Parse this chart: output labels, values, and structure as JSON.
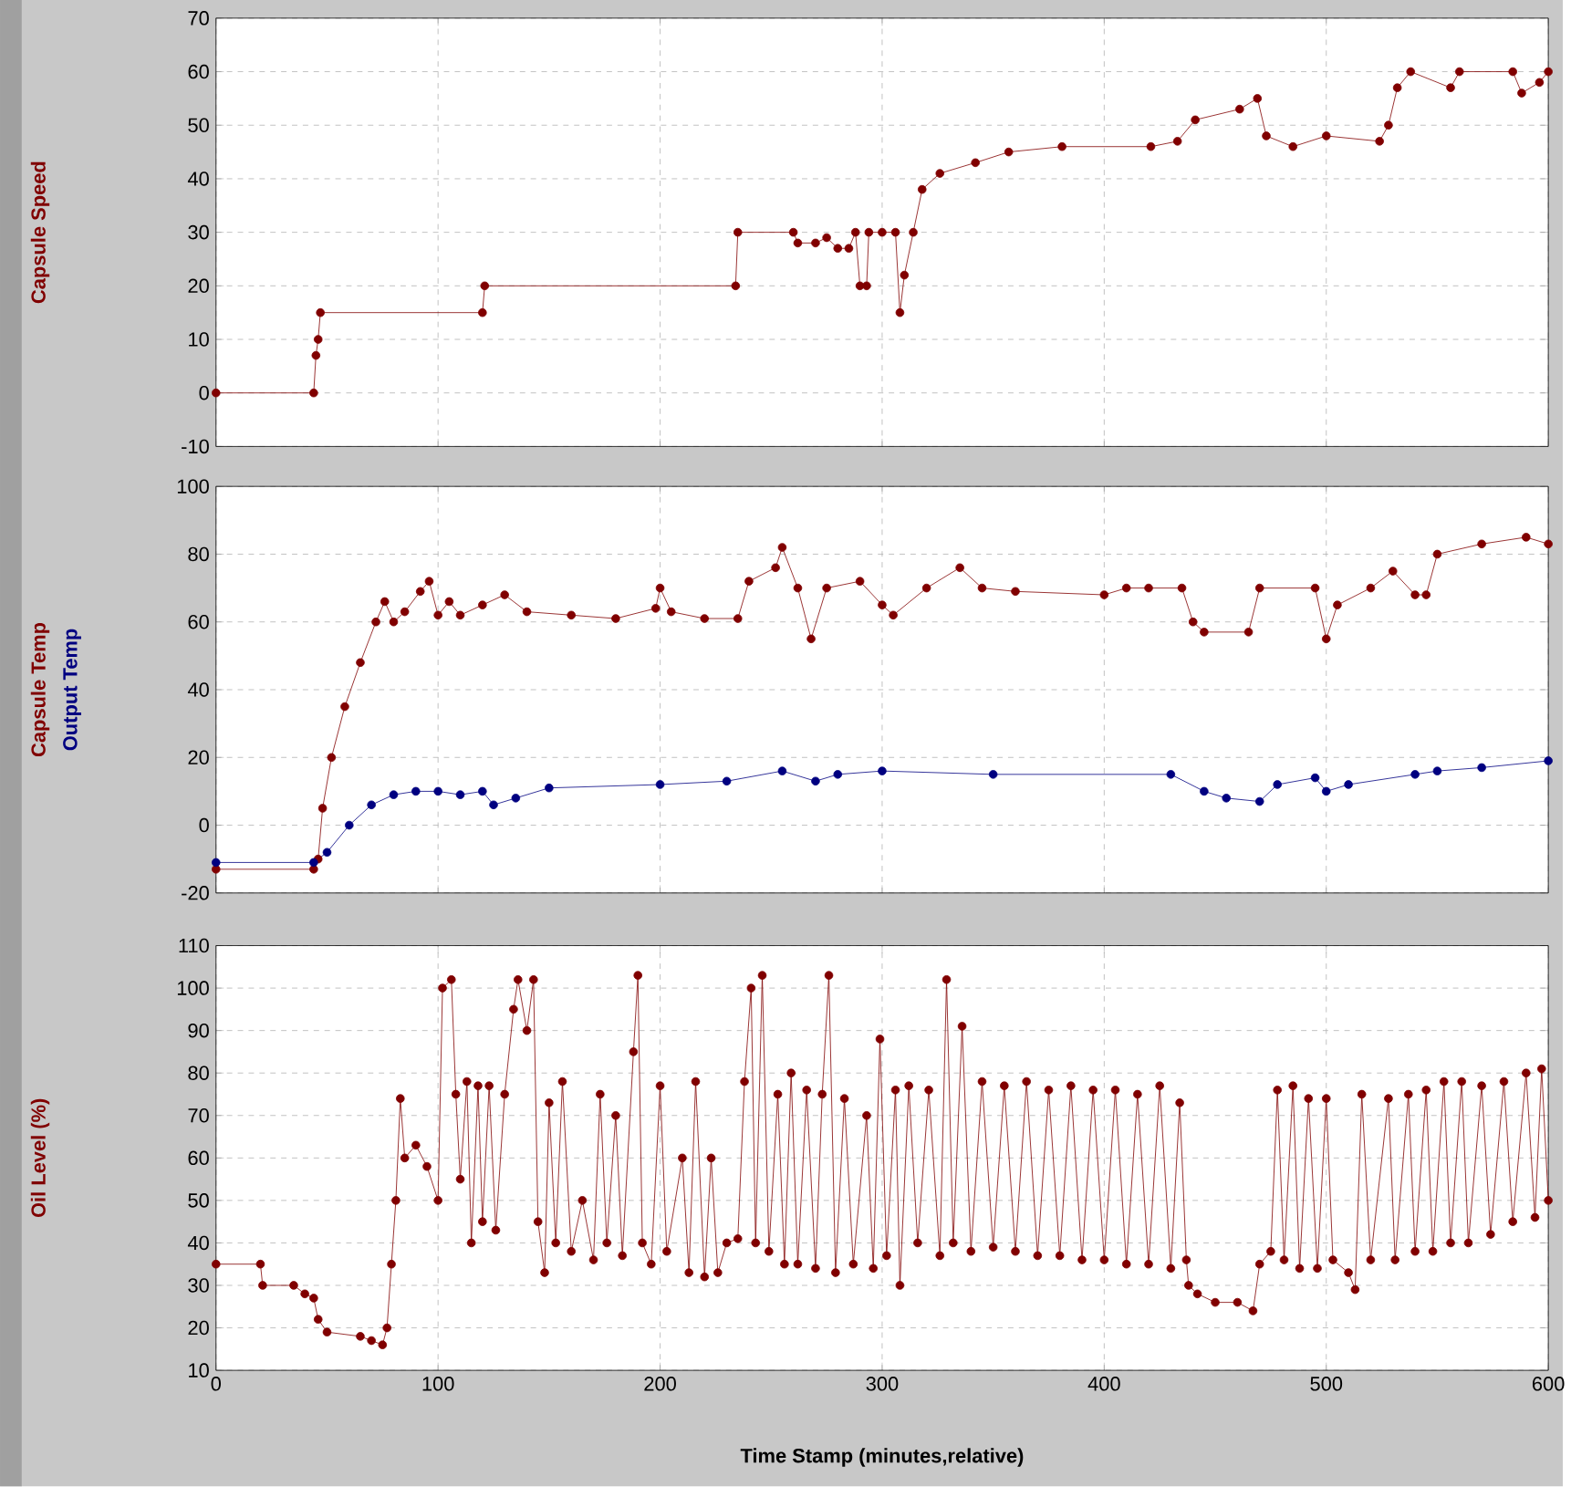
{
  "chart_data": [
    {
      "type": "line",
      "ylabel": "Capsule Speed",
      "xlim": [
        0,
        600
      ],
      "xticks": [
        0,
        100,
        200,
        300,
        400,
        500,
        600
      ],
      "ylim": [
        -10,
        70
      ],
      "yticks": [
        -10,
        0,
        10,
        20,
        30,
        40,
        50,
        60,
        70
      ],
      "grid": true,
      "marker": "circle",
      "tick_labels": "y",
      "series": [
        {
          "color": "#800000",
          "x": [
            0,
            44,
            45,
            46,
            47,
            120,
            121,
            234,
            235,
            260,
            262,
            270,
            275,
            280,
            285,
            288,
            290,
            293,
            294,
            300,
            306,
            308,
            310,
            314,
            318,
            326,
            342,
            357,
            381,
            421,
            433,
            441,
            461,
            469,
            473,
            485,
            500,
            524,
            528,
            532,
            538,
            556,
            560,
            584,
            588,
            596,
            600
          ],
          "values": [
            0,
            0,
            7,
            10,
            15,
            15,
            20,
            20,
            30,
            30,
            28,
            28,
            29,
            27,
            27,
            30,
            20,
            20,
            30,
            30,
            30,
            15,
            22,
            30,
            38,
            41,
            43,
            45,
            46,
            46,
            47,
            51,
            53,
            55,
            48,
            46,
            48,
            47,
            50,
            57,
            60,
            57,
            60,
            60,
            56,
            58,
            60
          ]
        }
      ]
    },
    {
      "type": "line",
      "xlim": [
        0,
        600
      ],
      "xticks": [
        0,
        100,
        200,
        300,
        400,
        500,
        600
      ],
      "ylim": [
        -20,
        100
      ],
      "yticks": [
        -20,
        0,
        20,
        40,
        60,
        80,
        100
      ],
      "grid": true,
      "marker": "circle",
      "tick_labels": "y",
      "series": [
        {
          "name": "Capsule Temp",
          "color": "#800000",
          "x": [
            0,
            44,
            46,
            48,
            52,
            58,
            65,
            72,
            76,
            80,
            85,
            92,
            96,
            100,
            105,
            110,
            120,
            130,
            140,
            160,
            180,
            198,
            200,
            205,
            220,
            235,
            240,
            252,
            255,
            262,
            268,
            275,
            290,
            300,
            305,
            320,
            335,
            345,
            360,
            400,
            410,
            420,
            435,
            440,
            445,
            465,
            470,
            495,
            500,
            505,
            520,
            530,
            540,
            545,
            550,
            570,
            590,
            600
          ],
          "values": [
            -13,
            -13,
            -10,
            5,
            20,
            35,
            48,
            60,
            66,
            60,
            63,
            69,
            72,
            62,
            66,
            62,
            65,
            68,
            63,
            62,
            61,
            64,
            70,
            63,
            61,
            61,
            72,
            76,
            82,
            70,
            55,
            70,
            72,
            65,
            62,
            70,
            76,
            70,
            69,
            68,
            70,
            70,
            70,
            60,
            57,
            57,
            70,
            70,
            55,
            65,
            70,
            75,
            68,
            68,
            80,
            83,
            85,
            83
          ]
        },
        {
          "name": "Output Temp",
          "color": "#000080",
          "x": [
            0,
            44,
            50,
            60,
            70,
            80,
            90,
            100,
            110,
            120,
            125,
            135,
            150,
            200,
            230,
            255,
            270,
            280,
            300,
            350,
            430,
            445,
            455,
            470,
            478,
            495,
            500,
            510,
            540,
            550,
            570,
            600
          ],
          "values": [
            -11,
            -11,
            -8,
            0,
            6,
            9,
            10,
            10,
            9,
            10,
            6,
            8,
            11,
            12,
            13,
            16,
            13,
            15,
            16,
            15,
            15,
            10,
            8,
            7,
            12,
            14,
            10,
            12,
            15,
            16,
            17,
            19
          ]
        }
      ]
    },
    {
      "type": "line",
      "xlabel": "Time Stamp (minutes,relative)",
      "ylabel": "Oil Level (%)",
      "xlim": [
        0,
        600
      ],
      "xticks": [
        0,
        100,
        200,
        300,
        400,
        500,
        600
      ],
      "ylim": [
        10,
        110
      ],
      "yticks": [
        10,
        20,
        30,
        40,
        50,
        60,
        70,
        80,
        90,
        100,
        110
      ],
      "grid": true,
      "marker": "circle",
      "series": [
        {
          "color": "#800000",
          "x": [
            0,
            20,
            21,
            35,
            40,
            44,
            46,
            50,
            65,
            70,
            75,
            77,
            79,
            81,
            83,
            85,
            90,
            95,
            100,
            102,
            106,
            108,
            110,
            113,
            115,
            118,
            120,
            123,
            126,
            130,
            134,
            136,
            140,
            143,
            145,
            148,
            150,
            153,
            156,
            160,
            165,
            170,
            173,
            176,
            180,
            183,
            188,
            190,
            192,
            196,
            200,
            203,
            210,
            213,
            216,
            220,
            223,
            226,
            230,
            235,
            238,
            241,
            243,
            246,
            249,
            253,
            256,
            259,
            262,
            266,
            270,
            273,
            276,
            279,
            283,
            287,
            293,
            296,
            299,
            302,
            306,
            308,
            312,
            316,
            321,
            326,
            329,
            332,
            336,
            340,
            345,
            350,
            355,
            360,
            365,
            370,
            375,
            380,
            385,
            390,
            395,
            400,
            405,
            410,
            415,
            420,
            425,
            430,
            434,
            437,
            438,
            442,
            450,
            460,
            467,
            470,
            475,
            478,
            481,
            485,
            488,
            492,
            496,
            500,
            503,
            510,
            513,
            516,
            520,
            528,
            531,
            537,
            540,
            545,
            548,
            553,
            556,
            561,
            564,
            570,
            574,
            580,
            584,
            590,
            594,
            597,
            600
          ],
          "values": [
            35,
            35,
            30,
            30,
            28,
            27,
            22,
            19,
            18,
            17,
            16,
            20,
            35,
            50,
            74,
            60,
            63,
            58,
            50,
            100,
            102,
            75,
            55,
            78,
            40,
            77,
            45,
            77,
            43,
            75,
            95,
            102,
            90,
            102,
            45,
            33,
            73,
            40,
            78,
            38,
            50,
            36,
            75,
            40,
            70,
            37,
            85,
            103,
            40,
            35,
            77,
            38,
            60,
            33,
            78,
            32,
            60,
            33,
            40,
            41,
            78,
            100,
            40,
            103,
            38,
            75,
            35,
            80,
            35,
            76,
            34,
            75,
            103,
            33,
            74,
            35,
            70,
            34,
            88,
            37,
            76,
            30,
            77,
            40,
            76,
            37,
            102,
            40,
            91,
            38,
            78,
            39,
            77,
            38,
            78,
            37,
            76,
            37,
            77,
            36,
            76,
            36,
            76,
            35,
            75,
            35,
            77,
            34,
            73,
            36,
            30,
            28,
            26,
            26,
            24,
            35,
            38,
            76,
            36,
            77,
            34,
            74,
            34,
            74,
            36,
            33,
            29,
            75,
            36,
            74,
            36,
            75,
            38,
            76,
            38,
            78,
            40,
            78,
            40,
            77,
            42,
            78,
            45,
            80,
            46,
            81,
            50
          ]
        }
      ]
    }
  ]
}
